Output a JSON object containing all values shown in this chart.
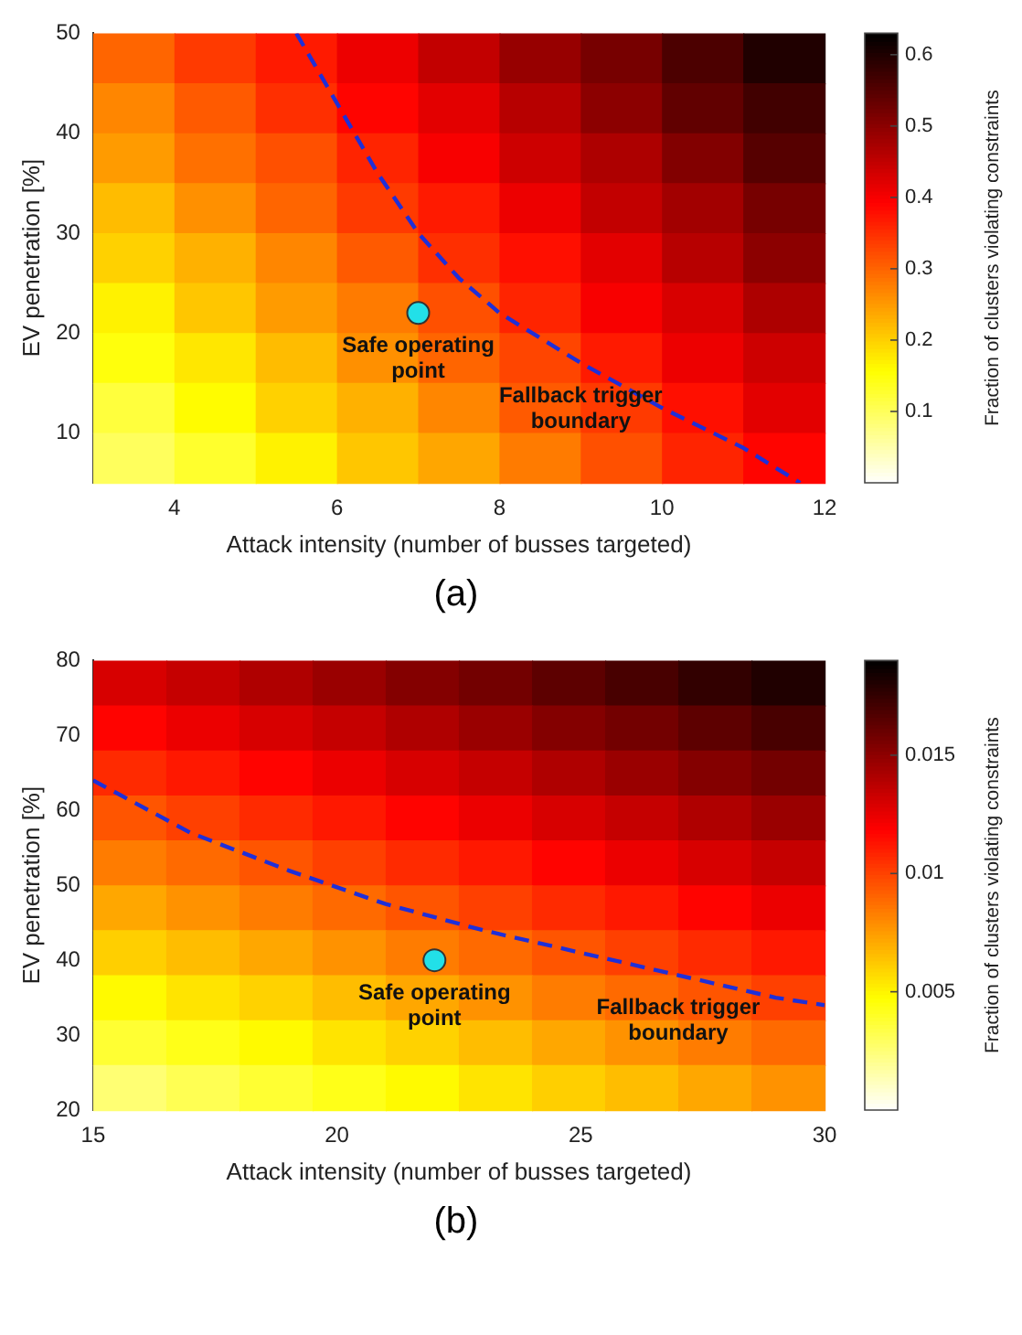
{
  "chart_data": [
    {
      "type": "heatmap",
      "xlabel": "Attack intensity (number of busses targeted)",
      "ylabel": "EV penetration [%]",
      "clabel": "Fraction of clusters violating constraints",
      "xlim": [
        3,
        12
      ],
      "ylim": [
        5,
        50
      ],
      "xticks": [
        4,
        6,
        8,
        10,
        12
      ],
      "yticks": [
        10,
        20,
        30,
        40,
        50
      ],
      "clim": [
        0,
        0.63
      ],
      "cticks": [
        0.1,
        0.2,
        0.3,
        0.4,
        0.5,
        0.6
      ],
      "cells": [
        [
          0.3,
          0.34,
          0.37,
          0.41,
          0.45,
          0.49,
          0.52,
          0.56,
          0.6
        ],
        [
          0.27,
          0.31,
          0.35,
          0.39,
          0.42,
          0.46,
          0.5,
          0.54,
          0.57
        ],
        [
          0.25,
          0.29,
          0.32,
          0.36,
          0.4,
          0.44,
          0.47,
          0.51,
          0.55
        ],
        [
          0.22,
          0.26,
          0.3,
          0.34,
          0.37,
          0.41,
          0.45,
          0.48,
          0.52
        ],
        [
          0.2,
          0.23,
          0.27,
          0.31,
          0.35,
          0.38,
          0.42,
          0.46,
          0.5
        ],
        [
          0.17,
          0.21,
          0.25,
          0.28,
          0.32,
          0.36,
          0.4,
          0.43,
          0.47
        ],
        [
          0.15,
          0.18,
          0.22,
          0.26,
          0.3,
          0.33,
          0.37,
          0.41,
          0.44
        ],
        [
          0.12,
          0.16,
          0.2,
          0.23,
          0.27,
          0.31,
          0.34,
          0.38,
          0.42
        ],
        [
          0.1,
          0.13,
          0.17,
          0.21,
          0.24,
          0.28,
          0.32,
          0.36,
          0.39
        ]
      ],
      "series": [
        {
          "type": "line",
          "color": "#1f2fd8",
          "line_style": "dashed",
          "marker": "none",
          "x": [
            5.5,
            6,
            6.5,
            7,
            7.5,
            8,
            9,
            10,
            11,
            11.7
          ],
          "values": [
            50,
            43,
            36,
            30,
            25.5,
            22,
            17,
            12.5,
            8.5,
            5
          ]
        },
        {
          "type": "scatter",
          "color": "#22e0e8",
          "marker": "circle",
          "x": [
            7
          ],
          "values": [
            22
          ]
        }
      ],
      "annotations": [
        {
          "text": "Safe operating point",
          "x": 7,
          "y": 22
        },
        {
          "text": "Fallback trigger boundary",
          "x": 9,
          "y": 17
        },
        "(a)"
      ]
    },
    {
      "type": "heatmap",
      "xlabel": "Attack intensity (number of busses targeted)",
      "ylabel": "EV penetration [%]",
      "clabel": "Fraction of clusters violating constraints",
      "xlim": [
        15,
        30
      ],
      "ylim": [
        20,
        80
      ],
      "xticks": [
        15,
        20,
        25,
        30
      ],
      "yticks": [
        20,
        30,
        40,
        50,
        60,
        70,
        80
      ],
      "clim": [
        0,
        0.019
      ],
      "cticks": [
        0.005,
        0.01,
        0.015
      ],
      "cells": [
        [
          0.013,
          0.0135,
          0.0141,
          0.0147,
          0.0153,
          0.0158,
          0.0164,
          0.017,
          0.0176,
          0.0181
        ],
        [
          0.0118,
          0.0124,
          0.013,
          0.0135,
          0.0141,
          0.0147,
          0.0153,
          0.0158,
          0.0164,
          0.017
        ],
        [
          0.0107,
          0.0112,
          0.0118,
          0.0124,
          0.013,
          0.0135,
          0.0141,
          0.0147,
          0.0153,
          0.0158
        ],
        [
          0.0095,
          0.0101,
          0.0107,
          0.0112,
          0.0118,
          0.0124,
          0.013,
          0.0135,
          0.0141,
          0.0147
        ],
        [
          0.0084,
          0.0089,
          0.0095,
          0.0101,
          0.0107,
          0.0112,
          0.0118,
          0.0124,
          0.013,
          0.0135
        ],
        [
          0.0072,
          0.0078,
          0.0084,
          0.0089,
          0.0095,
          0.0101,
          0.0107,
          0.0112,
          0.0118,
          0.0124
        ],
        [
          0.0061,
          0.0066,
          0.0072,
          0.0078,
          0.0084,
          0.0089,
          0.0095,
          0.0101,
          0.0107,
          0.0112
        ],
        [
          0.0049,
          0.0055,
          0.006,
          0.0066,
          0.0072,
          0.0078,
          0.0084,
          0.0089,
          0.0095,
          0.0101
        ],
        [
          0.0038,
          0.0043,
          0.0049,
          0.0055,
          0.006,
          0.0066,
          0.0072,
          0.0078,
          0.0084,
          0.0089
        ],
        [
          0.0026,
          0.0032,
          0.0038,
          0.0043,
          0.0049,
          0.0055,
          0.0061,
          0.0066,
          0.0072,
          0.0078
        ]
      ],
      "series": [
        {
          "type": "line",
          "color": "#1f2fd8",
          "line_style": "dashed",
          "marker": "none",
          "x": [
            15,
            17,
            19,
            21,
            23,
            25,
            27,
            29,
            30
          ],
          "values": [
            64,
            57,
            52,
            47.5,
            44,
            41,
            38,
            35,
            34
          ]
        },
        {
          "type": "scatter",
          "color": "#22e0e8",
          "marker": "circle",
          "x": [
            22
          ],
          "values": [
            40
          ]
        }
      ],
      "annotations": [
        {
          "text": "Safe operating point",
          "x": 22,
          "y": 40
        },
        {
          "text": "Fallback trigger boundary",
          "x": 27,
          "y": 38
        },
        "(b)"
      ]
    }
  ]
}
